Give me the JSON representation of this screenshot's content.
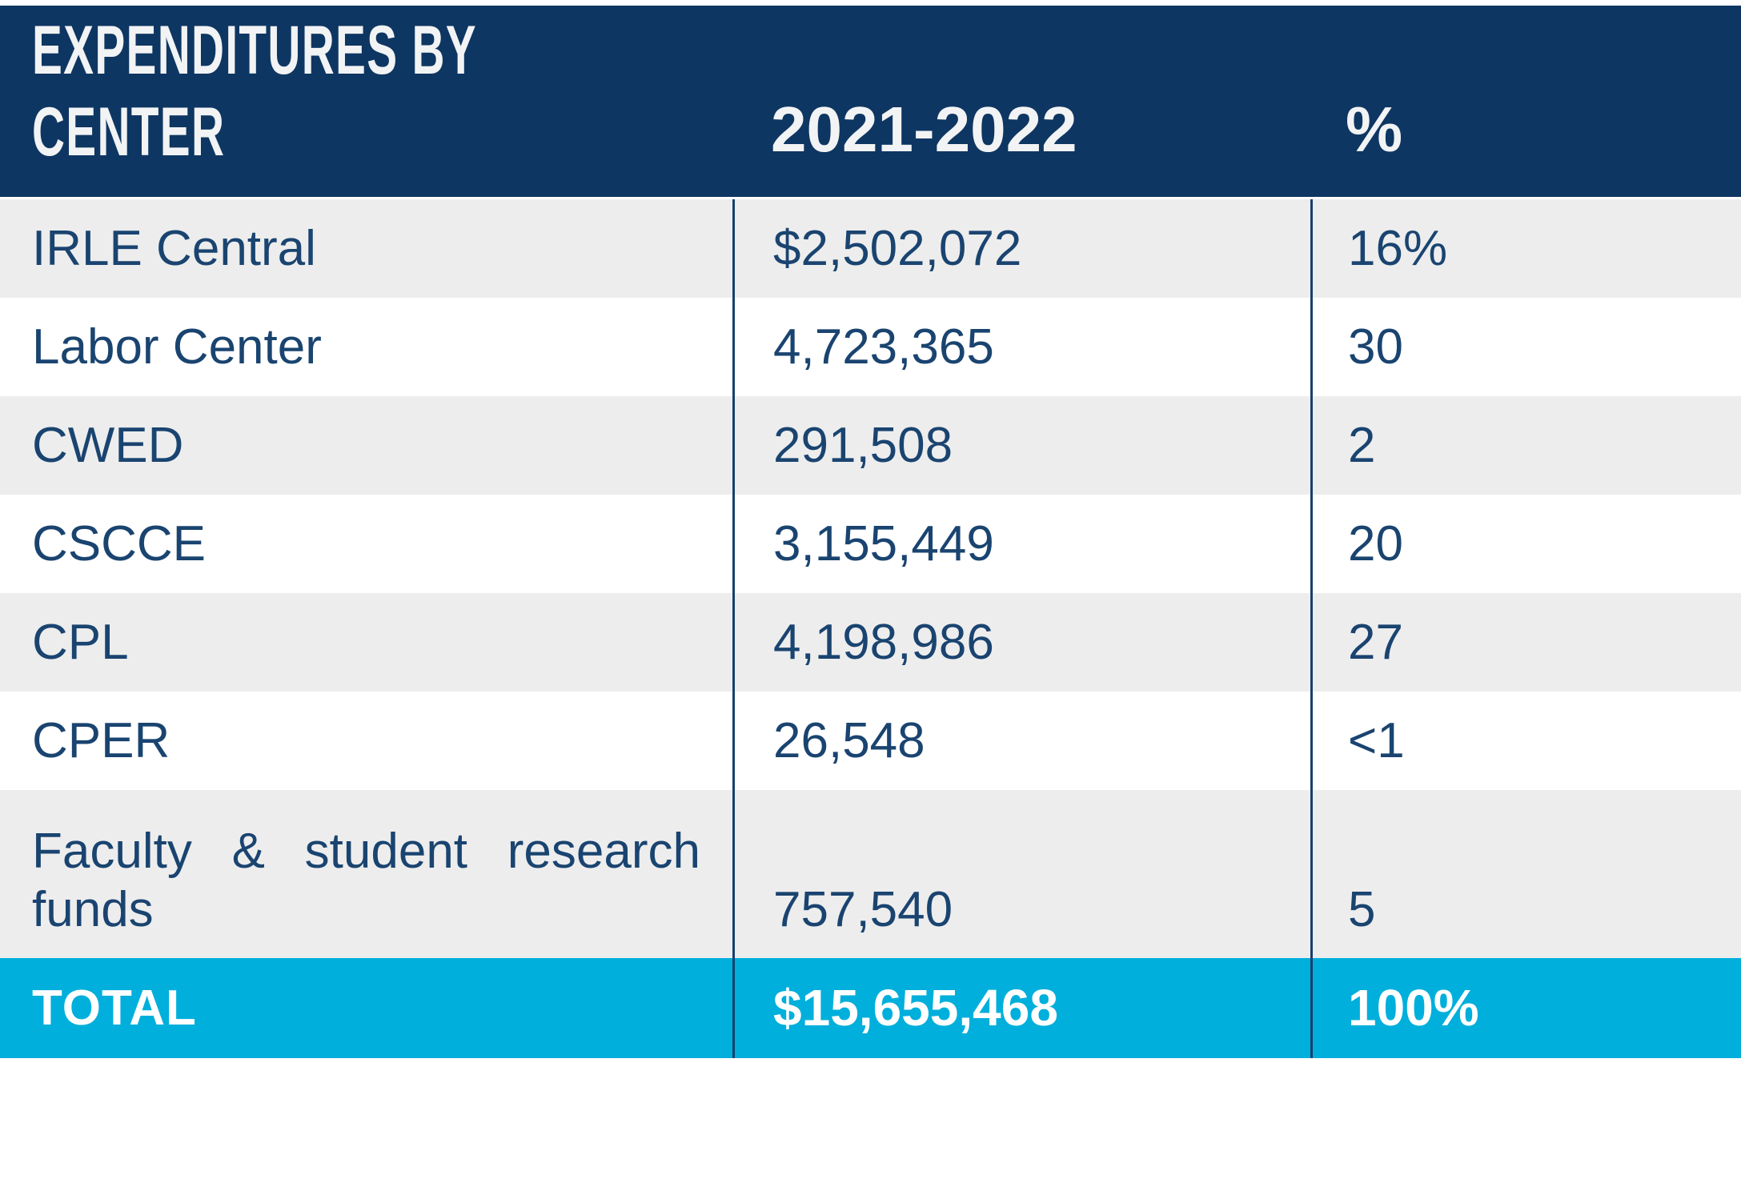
{
  "chart_data": {
    "type": "table",
    "title": "EXPENDITURES BY CENTER",
    "title_lines": [
      "EXPENDITURES BY",
      "CENTER"
    ],
    "column_headers": [
      "2021-2022",
      "%"
    ],
    "rows": [
      {
        "label": "IRLE Central",
        "amount": "$2,502,072",
        "percent": "16%"
      },
      {
        "label": "Labor Center",
        "amount": "4,723,365",
        "percent": "30"
      },
      {
        "label": "CWED",
        "amount": "291,508",
        "percent": "2"
      },
      {
        "label": "CSCCE",
        "amount": "3,155,449",
        "percent": "20"
      },
      {
        "label": "CPL",
        "amount": "4,198,986",
        "percent": "27"
      },
      {
        "label": "CPER",
        "amount": "26,548",
        "percent": "<1"
      },
      {
        "label": "Faculty & student research funds",
        "amount": "757,540",
        "percent": "5"
      }
    ],
    "total": {
      "label": "TOTAL",
      "amount": "$15,655,468",
      "percent": "100%"
    }
  },
  "colors": {
    "header_background": "#0E3662",
    "header_text": "#F2F3F4",
    "body_text": "#1A4470",
    "row_shaded": "#EDEDED",
    "row_plain": "#FFFFFF",
    "total_background": "#00AFDB",
    "total_text": "#FFFFFF",
    "column_divider": "#16406E"
  }
}
